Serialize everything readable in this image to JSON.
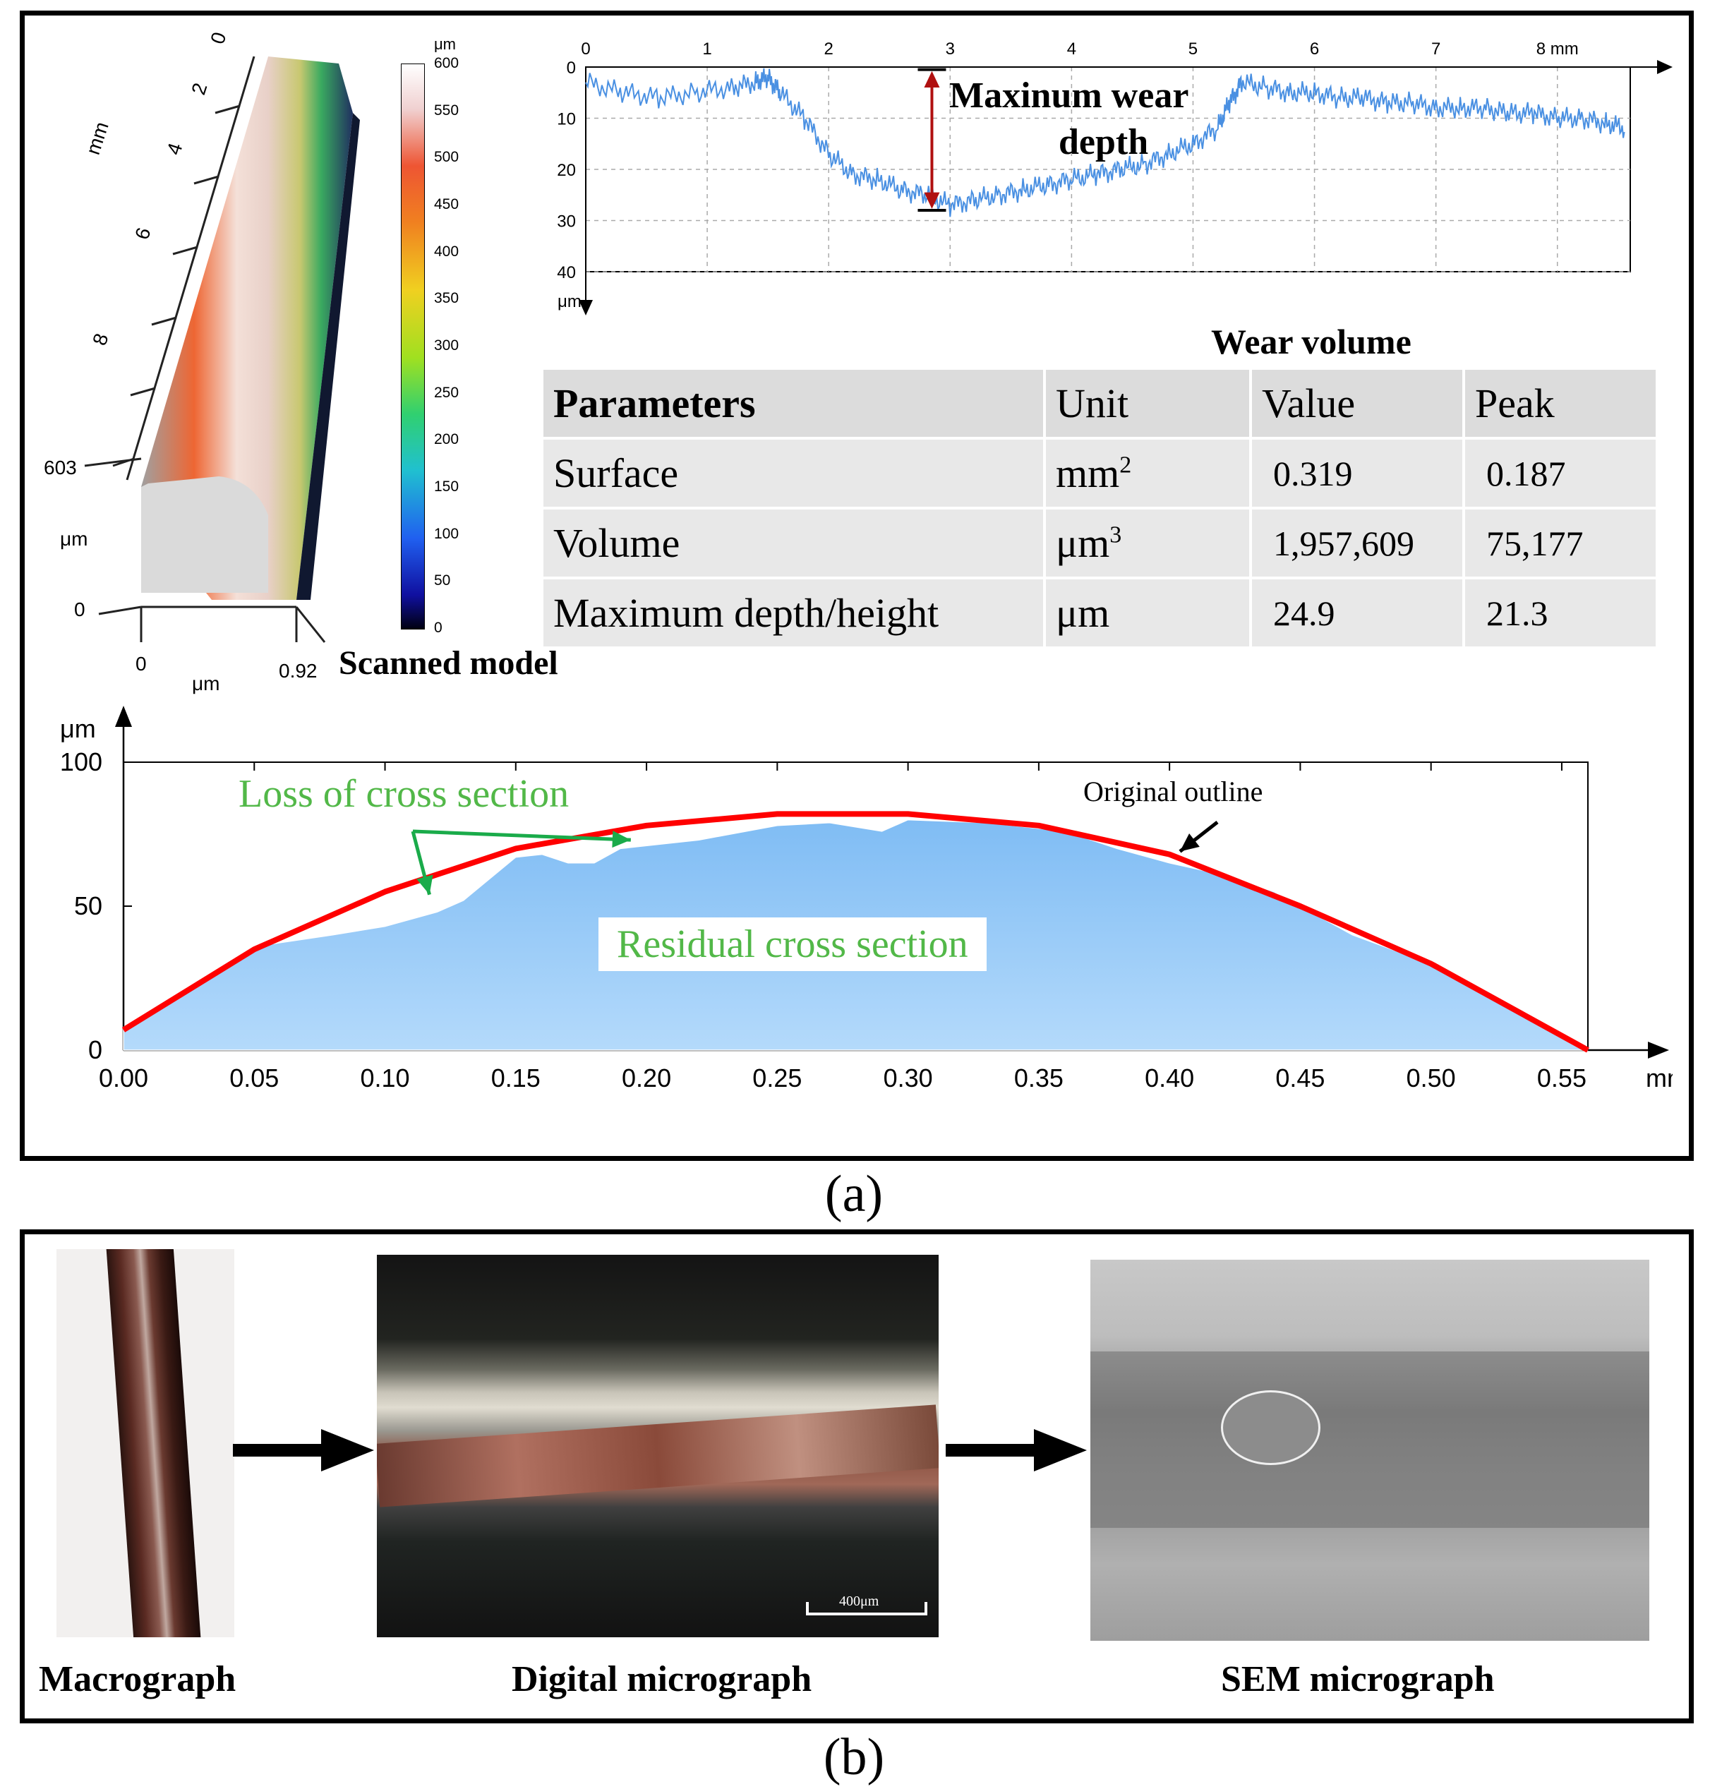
{
  "panel_a": {
    "label": "(a)",
    "scanned_model": {
      "title": "Scanned model",
      "axis_mm_unit": "mm",
      "axis_mm_ticks": [
        "0",
        "2",
        "4",
        "6",
        "8"
      ],
      "z_ticks": [
        "603",
        "0"
      ],
      "z_unit": "μm",
      "x_ticks": [
        "0",
        "0.92"
      ],
      "x_unit": "μm",
      "colorbar_unit": "μm",
      "colorbar_ticks": [
        "600",
        "550",
        "500",
        "450",
        "400",
        "350",
        "300",
        "250",
        "200",
        "150",
        "100",
        "50",
        "0"
      ]
    },
    "profile_chart": {
      "annotation": [
        "Maxinum wear",
        "depth"
      ],
      "x_unit": "mm",
      "y_unit": "μm"
    },
    "wear_table": {
      "title": "Wear volume",
      "headers": [
        "Parameters",
        "Unit",
        "Value",
        "Peak"
      ],
      "rows": [
        {
          "param": "Surface",
          "unit_base": "mm",
          "unit_sup": "2",
          "value": "0.319",
          "peak": "0.187"
        },
        {
          "param": "Volume",
          "unit_base": "μm",
          "unit_sup": "3",
          "value": "1,957,609",
          "peak": "75,177"
        },
        {
          "param": "Maximum depth/height",
          "unit_base": "μm",
          "unit_sup": "",
          "value": "24.9",
          "peak": "21.3"
        }
      ]
    },
    "cross_section_chart": {
      "label_loss": "Loss of cross section",
      "label_residual": "Residual cross section",
      "label_original": "Original outline",
      "x_unit": "mm",
      "y_unit": "μm"
    }
  },
  "panel_b": {
    "label": "(b)",
    "images": [
      {
        "caption": "Macrograph"
      },
      {
        "caption": "Digital micrograph",
        "scalebar": "400μm"
      },
      {
        "caption": "SEM micrograph"
      }
    ]
  },
  "colors": {
    "profile_line": "#4a90e2",
    "residual_fill": "#8ec5f6",
    "original_outline": "#ff0000",
    "loss_arrows": "#1aab4a",
    "loss_text": "#52b848",
    "depth_arrow": "#b01010"
  },
  "chart_data": [
    {
      "type": "line",
      "name": "wear-depth-profile",
      "x_unit": "mm",
      "y_unit": "μm",
      "xlim": [
        0,
        8.6
      ],
      "ylim": [
        0,
        40
      ],
      "y_inverted": true,
      "x_ticks": [
        0,
        1,
        2,
        3,
        4,
        5,
        6,
        7,
        8
      ],
      "y_ticks": [
        0,
        10,
        20,
        30,
        40
      ],
      "grid": true,
      "x": [
        0,
        0.3,
        0.6,
        0.9,
        1.2,
        1.4,
        1.5,
        1.6,
        1.8,
        2.0,
        2.2,
        2.4,
        2.6,
        2.8,
        3.0,
        3.2,
        3.4,
        3.6,
        3.8,
        4.0,
        4.2,
        4.4,
        4.6,
        4.8,
        5.0,
        5.2,
        5.3,
        5.4,
        5.6,
        5.8,
        6.0,
        6.2,
        6.4,
        6.6,
        6.8,
        7.0,
        7.2,
        7.4,
        7.6,
        7.8,
        8.0,
        8.2,
        8.4,
        8.56
      ],
      "y": [
        3,
        5,
        6,
        5,
        4,
        3,
        2,
        5,
        10,
        17,
        21,
        22,
        24,
        25,
        27,
        26,
        25,
        24,
        23,
        22,
        21,
        20,
        19,
        17,
        15,
        12,
        7,
        3,
        4,
        5,
        5,
        6,
        6,
        7,
        7,
        8,
        8,
        8,
        9,
        9,
        10,
        10,
        11,
        12
      ]
    },
    {
      "type": "area",
      "name": "cross-section",
      "x_unit": "mm",
      "y_unit": "μm",
      "xlim": [
        0,
        0.56
      ],
      "ylim": [
        0,
        100
      ],
      "x_ticks": [
        0.0,
        0.05,
        0.1,
        0.15,
        0.2,
        0.25,
        0.3,
        0.35,
        0.4,
        0.45,
        0.5,
        0.55
      ],
      "y_ticks": [
        0,
        50,
        100
      ],
      "series": [
        {
          "name": "Residual cross section",
          "x": [
            0,
            0.02,
            0.05,
            0.08,
            0.1,
            0.12,
            0.13,
            0.15,
            0.16,
            0.17,
            0.18,
            0.19,
            0.22,
            0.25,
            0.27,
            0.29,
            0.3,
            0.33,
            0.36,
            0.38,
            0.4,
            0.42,
            0.44,
            0.47,
            0.5,
            0.53,
            0.56
          ],
          "y": [
            8,
            18,
            36,
            40,
            43,
            48,
            52,
            67,
            68,
            65,
            65,
            70,
            73,
            78,
            79,
            76,
            80,
            79,
            76,
            70,
            65,
            61,
            55,
            40,
            30,
            15,
            0
          ]
        },
        {
          "name": "Original outline",
          "x": [
            0,
            0.05,
            0.1,
            0.15,
            0.2,
            0.25,
            0.28,
            0.3,
            0.35,
            0.4,
            0.45,
            0.5,
            0.56
          ],
          "y": [
            7,
            35,
            55,
            70,
            78,
            82,
            82,
            82,
            78,
            68,
            50,
            30,
            0
          ]
        }
      ]
    }
  ]
}
